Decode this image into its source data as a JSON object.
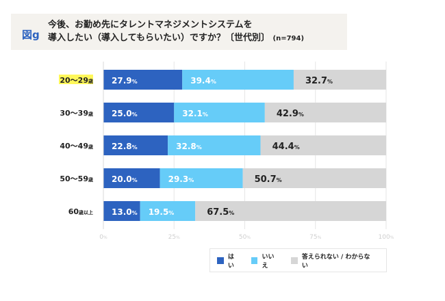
{
  "header": {
    "figure_label": "図g",
    "title_line1": "今後、お勤め先にタレントマネジメントシステムを",
    "title_line2": "導入したい（導入してもらいたい）ですか？〔世代別〕",
    "sample_size": "(n=794)"
  },
  "chart_data": {
    "type": "bar",
    "orientation": "horizontal",
    "stacked": true,
    "title": "今後、お勤め先にタレントマネジメントシステムを導入したい（導入してもらいたい）ですか？〔世代別〕 (n=794)",
    "categories": [
      "20〜29歳",
      "30〜39歳",
      "40〜49歳",
      "50〜59歳",
      "60歳以上"
    ],
    "highlighted_category": "20〜29歳",
    "series": [
      {
        "name": "はい",
        "color": "#2d63c0",
        "label_color": "#ffffff",
        "values": [
          27.9,
          25.0,
          22.8,
          20.0,
          13.0
        ]
      },
      {
        "name": "いいえ",
        "color": "#66ccf8",
        "label_color": "#ffffff",
        "values": [
          39.4,
          32.1,
          32.8,
          29.3,
          19.5
        ]
      },
      {
        "name": "答えられない / わからない",
        "color": "#d6d6d6",
        "label_color": "#222222",
        "values": [
          32.7,
          42.9,
          44.4,
          50.7,
          67.5
        ]
      }
    ],
    "xlim": [
      0,
      100
    ],
    "xticks": [
      0,
      25,
      50,
      75,
      100
    ],
    "xtick_labels": [
      "0%",
      "25%",
      "50%",
      "75%",
      "100%"
    ],
    "unit": "%",
    "grid": true,
    "legend_position": "bottom-right"
  }
}
